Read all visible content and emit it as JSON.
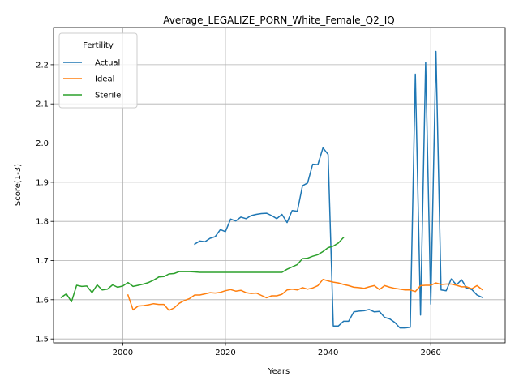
{
  "chart_data": {
    "type": "line",
    "title": "Average_LEGALIZE_PORN_White_Female_Q2_IQ",
    "xlabel": "Years",
    "ylabel": "Score(1-3)",
    "xlim": [
      1986.5,
      2074.5
    ],
    "ylim": [
      1.49,
      2.295
    ],
    "xticks": [
      2000,
      2020,
      2040,
      2060
    ],
    "yticks": [
      1.5,
      1.6,
      1.7,
      1.8,
      1.9,
      2.0,
      2.1,
      2.2
    ],
    "grid": true,
    "legend": {
      "title": "Fertility",
      "placement": "top-left"
    },
    "series": [
      {
        "name": "Actual",
        "color": "#1f77b4",
        "x": [
          2014,
          2015,
          2016,
          2017,
          2018,
          2019,
          2020,
          2021,
          2022,
          2023,
          2024,
          2025,
          2026,
          2027,
          2028,
          2029,
          2030,
          2031,
          2032,
          2033,
          2034,
          2035,
          2036,
          2037,
          2038,
          2039,
          2040,
          2041,
          2042,
          2043,
          2044,
          2045,
          2046,
          2047,
          2048,
          2049,
          2050,
          2051,
          2052,
          2053,
          2054,
          2055,
          2056,
          2057,
          2058,
          2059,
          2060,
          2061,
          2062,
          2063,
          2064,
          2065,
          2066,
          2067,
          2068,
          2069,
          2070
        ],
        "y": [
          1.742,
          1.75,
          1.748,
          1.757,
          1.761,
          1.779,
          1.774,
          1.806,
          1.801,
          1.811,
          1.807,
          1.815,
          1.818,
          1.82,
          1.821,
          1.815,
          1.807,
          1.818,
          1.797,
          1.828,
          1.826,
          1.891,
          1.898,
          1.946,
          1.945,
          1.988,
          1.971,
          1.533,
          1.533,
          1.545,
          1.545,
          1.569,
          1.571,
          1.572,
          1.575,
          1.569,
          1.57,
          1.555,
          1.551,
          1.542,
          1.528,
          1.528,
          1.53,
          2.176,
          1.561,
          2.206,
          1.589,
          2.234,
          1.625,
          1.623,
          1.653,
          1.638,
          1.651,
          1.63,
          1.626,
          1.612,
          1.606
        ]
      },
      {
        "name": "Ideal",
        "color": "#ff7f0e",
        "x": [
          2001,
          2002,
          2003,
          2004,
          2005,
          2006,
          2007,
          2008,
          2009,
          2010,
          2011,
          2012,
          2013,
          2014,
          2015,
          2016,
          2017,
          2018,
          2019,
          2020,
          2021,
          2022,
          2023,
          2024,
          2025,
          2026,
          2027,
          2028,
          2029,
          2030,
          2031,
          2032,
          2033,
          2034,
          2035,
          2036,
          2037,
          2038,
          2039,
          2040,
          2041,
          2042,
          2043,
          2044,
          2045,
          2046,
          2047,
          2048,
          2049,
          2050,
          2051,
          2052,
          2053,
          2054,
          2055,
          2056,
          2057,
          2058,
          2059,
          2060,
          2061,
          2062,
          2063,
          2064,
          2065,
          2066,
          2067,
          2068,
          2069,
          2070
        ],
        "y": [
          1.612,
          1.574,
          1.584,
          1.585,
          1.587,
          1.59,
          1.588,
          1.588,
          1.573,
          1.579,
          1.591,
          1.598,
          1.603,
          1.612,
          1.612,
          1.615,
          1.618,
          1.617,
          1.619,
          1.623,
          1.626,
          1.622,
          1.624,
          1.618,
          1.616,
          1.617,
          1.611,
          1.605,
          1.61,
          1.61,
          1.614,
          1.625,
          1.627,
          1.625,
          1.631,
          1.627,
          1.63,
          1.636,
          1.652,
          1.648,
          1.645,
          1.643,
          1.639,
          1.636,
          1.632,
          1.631,
          1.629,
          1.633,
          1.636,
          1.626,
          1.636,
          1.632,
          1.629,
          1.627,
          1.625,
          1.625,
          1.621,
          1.636,
          1.637,
          1.637,
          1.643,
          1.639,
          1.64,
          1.64,
          1.637,
          1.633,
          1.633,
          1.628,
          1.636,
          1.626
        ]
      },
      {
        "name": "Sterile",
        "color": "#2ca02c",
        "x": [
          1988,
          1989,
          1990,
          1991,
          1992,
          1993,
          1994,
          1995,
          1996,
          1997,
          1998,
          1999,
          2000,
          2001,
          2002,
          2003,
          2004,
          2005,
          2006,
          2007,
          2008,
          2009,
          2010,
          2011,
          2012,
          2013,
          2014,
          2015,
          2016,
          2017,
          2018,
          2019,
          2020,
          2021,
          2022,
          2023,
          2024,
          2025,
          2026,
          2027,
          2028,
          2029,
          2030,
          2031,
          2032,
          2033,
          2034,
          2035,
          2036,
          2037,
          2038,
          2039,
          2040,
          2041,
          2042,
          2043
        ],
        "y": [
          1.606,
          1.615,
          1.595,
          1.637,
          1.634,
          1.635,
          1.618,
          1.638,
          1.625,
          1.627,
          1.638,
          1.632,
          1.635,
          1.644,
          1.634,
          1.637,
          1.64,
          1.644,
          1.65,
          1.658,
          1.659,
          1.666,
          1.667,
          1.672,
          1.672,
          1.672,
          1.671,
          1.67,
          1.67,
          1.67,
          1.67,
          1.67,
          1.67,
          1.67,
          1.67,
          1.67,
          1.67,
          1.67,
          1.67,
          1.67,
          1.67,
          1.67,
          1.67,
          1.67,
          1.678,
          1.684,
          1.69,
          1.705,
          1.706,
          1.711,
          1.715,
          1.723,
          1.733,
          1.737,
          1.745,
          1.759
        ]
      }
    ]
  }
}
